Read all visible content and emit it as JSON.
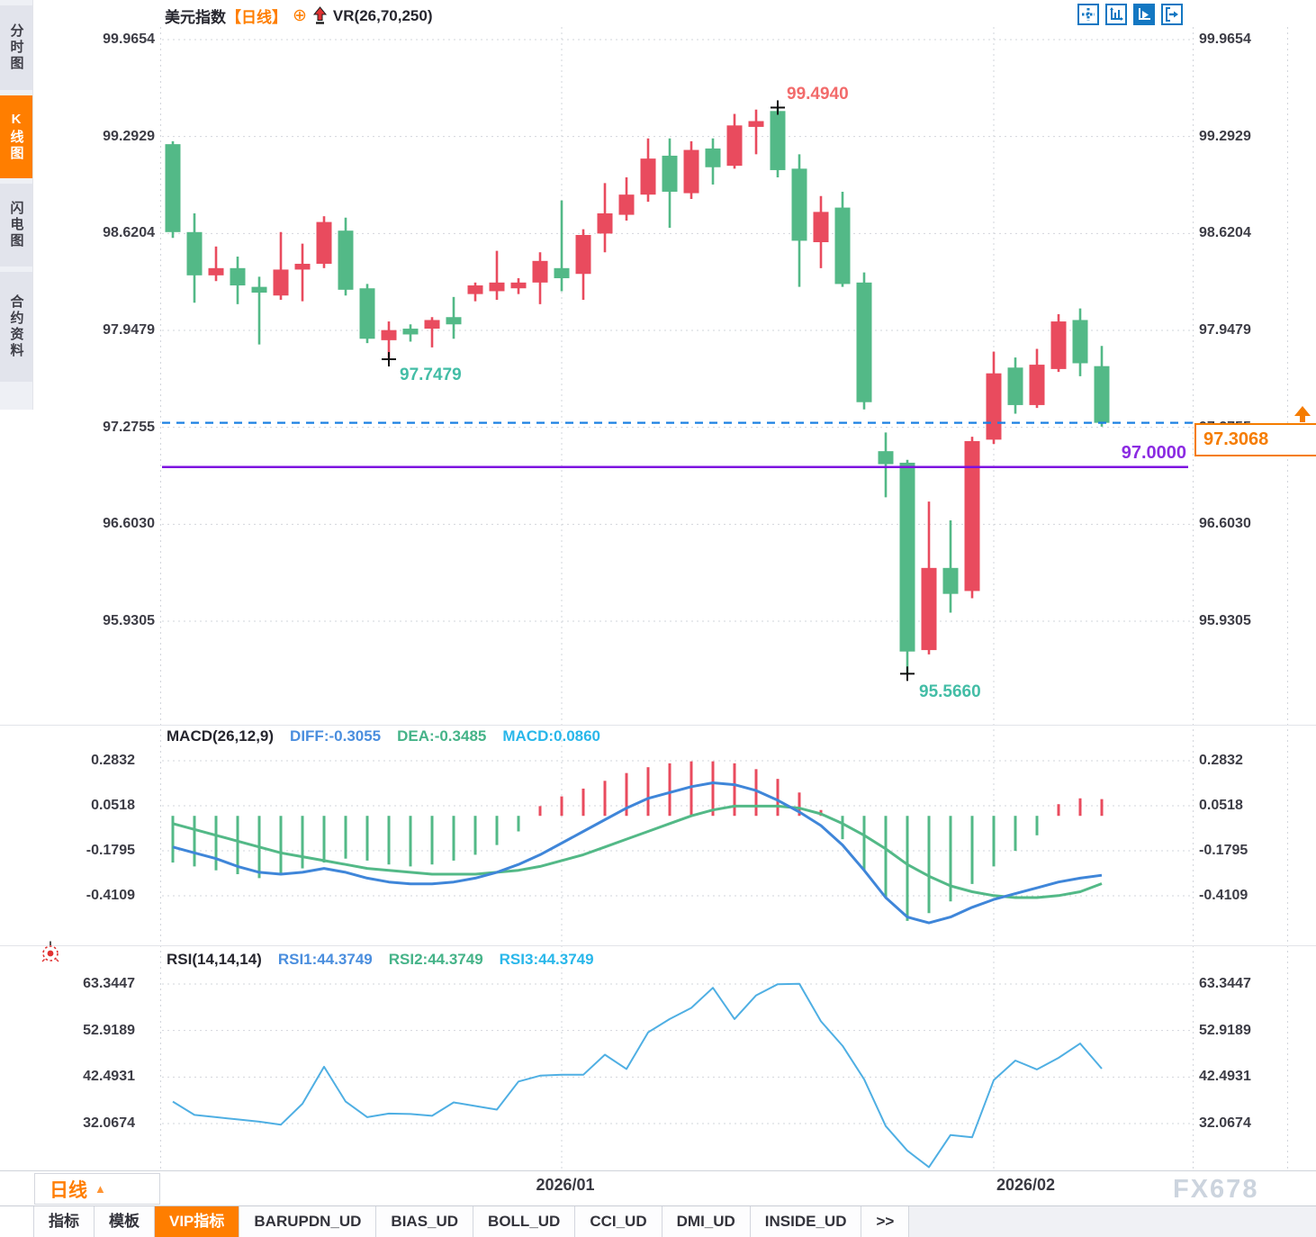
{
  "header": {
    "symbol": "美元指数",
    "period": "【日线】",
    "plus_icon": "⊕",
    "indicator": "VR(26,70,250)"
  },
  "toolbar": {
    "icons": [
      "pan-crosshair-icon",
      "axis-scale-icon",
      "axis-play-icon",
      "exit-right-icon"
    ],
    "active_icon": "axis-play-icon"
  },
  "sidebar": {
    "items": [
      {
        "label": "分时图",
        "active": false
      },
      {
        "label": "K线图",
        "active": true
      },
      {
        "label": "闪电图",
        "active": false
      },
      {
        "label": "合约资料",
        "active": false
      }
    ]
  },
  "annotations": {
    "peak": "99.4940",
    "trough1": "97.7479",
    "trough2": "95.5660",
    "support": "97.0000",
    "last": "97.3068"
  },
  "macd": {
    "header": {
      "name": "MACD(26,12,9)",
      "diff": "DIFF:-0.3055",
      "dea": "DEA:-0.3485",
      "macd": "MACD:0.0860"
    }
  },
  "rsi": {
    "header": {
      "name": "RSI(14,14,14)",
      "rsi1": "RSI1:44.3749",
      "rsi2": "RSI2:44.3749",
      "rsi3": "RSI3:44.3749"
    }
  },
  "xaxis": {
    "labels": [
      "2026/01",
      "2026/02"
    ]
  },
  "timeframe": {
    "label": "日线",
    "arrow": "▲"
  },
  "watermark": "FX678",
  "colors": {
    "up": "#e94b5e",
    "down": "#53b987",
    "accent_orange": "#ff7e00",
    "diff_line": "#3f86d9",
    "dea_line": "#53b987",
    "rsi_line": "#4fafe3",
    "last_price_line": "#1b80e3",
    "support_line": "#7d12e0",
    "grid": "#d2d5db",
    "peak_label": "#f26b6b",
    "trough_label": "#43bda6",
    "last_price": "#f57c00"
  },
  "chart_data": [
    {
      "type": "candlestick",
      "title": "美元指数 日线",
      "y_ticks": [
        99.9654,
        99.2929,
        98.6204,
        97.9479,
        97.2755,
        96.603,
        95.9305
      ],
      "x_ticks": [
        "2026/01",
        "2026/02"
      ],
      "x_tick_candle_index": [
        18,
        38
      ],
      "support_level": 97.0,
      "last_price": 97.3068,
      "markers": [
        {
          "kind": "high",
          "index": 28,
          "price": 99.494
        },
        {
          "kind": "low",
          "index": 10,
          "price": 97.7479
        },
        {
          "kind": "low",
          "index": 34,
          "price": 95.566
        }
      ],
      "candles": [
        [
          99.24,
          99.26,
          98.59,
          98.63
        ],
        [
          98.63,
          98.76,
          98.14,
          98.33
        ],
        [
          98.33,
          98.53,
          98.29,
          98.38
        ],
        [
          98.38,
          98.46,
          98.13,
          98.26
        ],
        [
          98.25,
          98.32,
          97.85,
          98.21
        ],
        [
          98.19,
          98.63,
          98.16,
          98.37
        ],
        [
          98.37,
          98.55,
          98.15,
          98.41
        ],
        [
          98.41,
          98.74,
          98.38,
          98.7
        ],
        [
          98.64,
          98.73,
          98.19,
          98.23
        ],
        [
          98.24,
          98.27,
          97.86,
          97.89
        ],
        [
          97.88,
          98.01,
          97.7479,
          97.95
        ],
        [
          97.96,
          97.99,
          97.87,
          97.92
        ],
        [
          97.96,
          98.04,
          97.83,
          98.02
        ],
        [
          98.04,
          98.18,
          97.89,
          97.99
        ],
        [
          98.2,
          98.28,
          98.15,
          98.26
        ],
        [
          98.22,
          98.5,
          98.16,
          98.28
        ],
        [
          98.24,
          98.31,
          98.2,
          98.28
        ],
        [
          98.28,
          98.49,
          98.13,
          98.43
        ],
        [
          98.38,
          98.85,
          98.22,
          98.31
        ],
        [
          98.34,
          98.65,
          98.16,
          98.61
        ],
        [
          98.62,
          98.97,
          98.49,
          98.76
        ],
        [
          98.75,
          99.01,
          98.71,
          98.89
        ],
        [
          98.89,
          99.28,
          98.84,
          99.14
        ],
        [
          99.16,
          99.28,
          98.66,
          98.91
        ],
        [
          98.9,
          99.26,
          98.86,
          99.2
        ],
        [
          99.21,
          99.28,
          98.96,
          99.08
        ],
        [
          99.09,
          99.45,
          99.07,
          99.37
        ],
        [
          99.36,
          99.48,
          99.17,
          99.4
        ],
        [
          99.47,
          99.494,
          99.01,
          99.06
        ],
        [
          99.07,
          99.17,
          98.25,
          98.57
        ],
        [
          98.56,
          98.88,
          98.38,
          98.77
        ],
        [
          98.8,
          98.91,
          98.25,
          98.27
        ],
        [
          98.28,
          98.35,
          97.4,
          97.45
        ],
        [
          97.11,
          97.24,
          96.79,
          97.02
        ],
        [
          97.03,
          97.05,
          95.566,
          95.72
        ],
        [
          95.73,
          96.76,
          95.7,
          96.3
        ],
        [
          96.3,
          96.63,
          95.99,
          96.12
        ],
        [
          96.14,
          97.21,
          96.09,
          97.18
        ],
        [
          97.19,
          97.8,
          97.16,
          97.65
        ],
        [
          97.69,
          97.76,
          97.37,
          97.43
        ],
        [
          97.43,
          97.82,
          97.41,
          97.71
        ],
        [
          97.68,
          98.06,
          97.66,
          98.01
        ],
        [
          98.02,
          98.1,
          97.63,
          97.72
        ],
        [
          97.7,
          97.84,
          97.28,
          97.3068
        ]
      ]
    },
    {
      "type": "bar",
      "title": "MACD(26,12,9)",
      "y_ticks": [
        0.2832,
        0.0518,
        -0.1795,
        -0.4109
      ],
      "readout": {
        "DIFF": -0.3055,
        "DEA": -0.3485,
        "MACD": 0.086
      },
      "hist": [
        -0.24,
        -0.26,
        -0.28,
        -0.3,
        -0.32,
        -0.3,
        -0.27,
        -0.24,
        -0.22,
        -0.23,
        -0.25,
        -0.26,
        -0.25,
        -0.23,
        -0.2,
        -0.15,
        -0.08,
        0.05,
        0.1,
        0.14,
        0.18,
        0.22,
        0.25,
        0.27,
        0.28,
        0.28,
        0.27,
        0.24,
        0.19,
        0.12,
        0.03,
        -0.12,
        -0.28,
        -0.42,
        -0.54,
        -0.5,
        -0.44,
        -0.35,
        -0.26,
        -0.18,
        -0.1,
        0.06,
        0.09,
        0.086
      ],
      "diff": [
        -0.16,
        -0.19,
        -0.22,
        -0.26,
        -0.29,
        -0.3,
        -0.29,
        -0.27,
        -0.29,
        -0.32,
        -0.34,
        -0.35,
        -0.35,
        -0.34,
        -0.32,
        -0.29,
        -0.25,
        -0.2,
        -0.14,
        -0.08,
        -0.02,
        0.04,
        0.09,
        0.12,
        0.15,
        0.17,
        0.16,
        0.13,
        0.08,
        0.02,
        -0.05,
        -0.15,
        -0.28,
        -0.42,
        -0.52,
        -0.55,
        -0.52,
        -0.47,
        -0.43,
        -0.4,
        -0.37,
        -0.34,
        -0.32,
        -0.3055
      ],
      "dea": [
        -0.04,
        -0.07,
        -0.1,
        -0.13,
        -0.16,
        -0.19,
        -0.21,
        -0.23,
        -0.25,
        -0.27,
        -0.28,
        -0.29,
        -0.3,
        -0.3,
        -0.3,
        -0.29,
        -0.28,
        -0.26,
        -0.23,
        -0.2,
        -0.16,
        -0.12,
        -0.08,
        -0.04,
        0.0,
        0.03,
        0.05,
        0.05,
        0.05,
        0.04,
        0.01,
        -0.04,
        -0.1,
        -0.17,
        -0.25,
        -0.31,
        -0.36,
        -0.39,
        -0.41,
        -0.42,
        -0.42,
        -0.41,
        -0.39,
        -0.3485
      ]
    },
    {
      "type": "line",
      "title": "RSI(14,14,14)",
      "y_ticks": [
        63.3447,
        52.9189,
        42.4931,
        32.0674
      ],
      "readout": {
        "RSI1": 44.3749,
        "RSI2": 44.3749,
        "RSI3": 44.3749
      },
      "values": [
        37.0,
        34.0,
        33.5,
        33.0,
        32.5,
        31.8,
        36.5,
        44.8,
        37.0,
        33.5,
        34.3,
        34.2,
        33.8,
        36.8,
        36.0,
        35.2,
        41.5,
        42.8,
        43.0,
        43.0,
        47.5,
        44.3,
        52.5,
        55.5,
        58.0,
        62.5,
        55.5,
        60.8,
        63.3,
        63.4,
        55.0,
        49.5,
        42.0,
        31.5,
        26.0,
        22.3,
        29.5,
        29.0,
        41.8,
        46.2,
        44.2,
        46.8,
        50.0,
        44.3749
      ]
    }
  ]
}
